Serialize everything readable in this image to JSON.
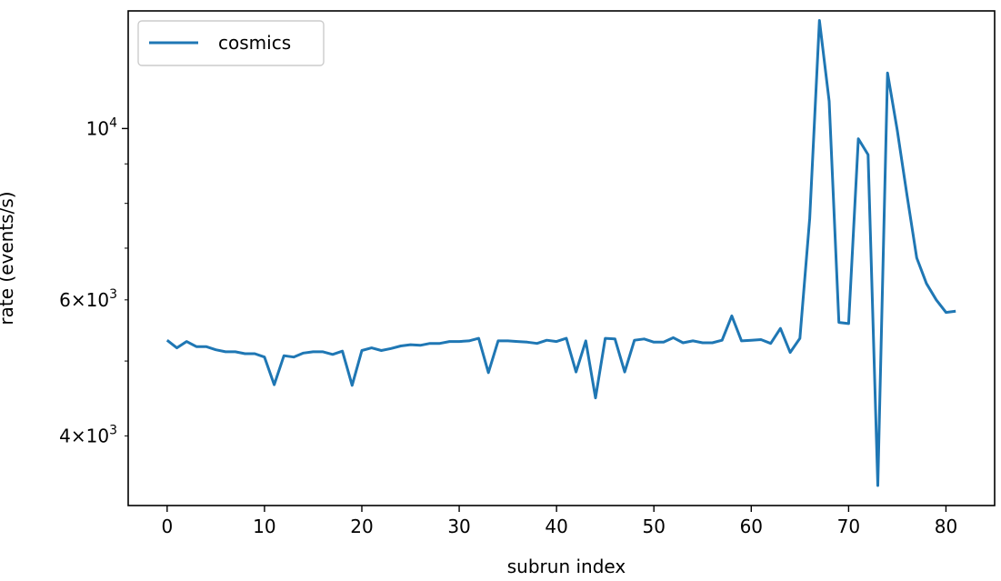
{
  "chart_data": {
    "type": "line",
    "xlabel": "subrun index",
    "ylabel": "rate (events/s)",
    "y_scale": "log",
    "xlim": [
      -4,
      85
    ],
    "ylim": [
      3250,
      14200
    ],
    "x_ticks": [
      {
        "value": 0,
        "label": "0"
      },
      {
        "value": 10,
        "label": "10"
      },
      {
        "value": 20,
        "label": "20"
      },
      {
        "value": 30,
        "label": "30"
      },
      {
        "value": 40,
        "label": "40"
      },
      {
        "value": 50,
        "label": "50"
      },
      {
        "value": 60,
        "label": "60"
      },
      {
        "value": 70,
        "label": "70"
      },
      {
        "value": 80,
        "label": "80"
      }
    ],
    "y_major_ticks": [
      {
        "value": 10000,
        "base": "10",
        "exp": "4"
      }
    ],
    "y_minor_ticks": [
      {
        "value": 4000,
        "coef": "4",
        "base": "10",
        "exp": "3"
      },
      {
        "value": 5000,
        "coef": "",
        "base": "",
        "exp": ""
      },
      {
        "value": 6000,
        "coef": "6",
        "base": "10",
        "exp": "3"
      },
      {
        "value": 7000,
        "coef": "",
        "base": "",
        "exp": ""
      },
      {
        "value": 8000,
        "coef": "",
        "base": "",
        "exp": ""
      },
      {
        "value": 9000,
        "coef": "",
        "base": "",
        "exp": ""
      }
    ],
    "grid": false,
    "legend": {
      "position": "top-left"
    },
    "series": [
      {
        "name": "cosmics",
        "color": "#1f77b4",
        "x": [
          0,
          1,
          2,
          3,
          4,
          5,
          6,
          7,
          8,
          9,
          10,
          11,
          12,
          13,
          14,
          15,
          16,
          17,
          18,
          19,
          20,
          21,
          22,
          23,
          24,
          25,
          26,
          27,
          28,
          29,
          30,
          31,
          32,
          33,
          34,
          35,
          36,
          37,
          38,
          39,
          40,
          41,
          42,
          43,
          44,
          45,
          46,
          47,
          48,
          49,
          50,
          51,
          52,
          53,
          54,
          55,
          56,
          57,
          58,
          59,
          60,
          61,
          62,
          63,
          64,
          65,
          66,
          67,
          68,
          69,
          70,
          71,
          72,
          73,
          74,
          75,
          76,
          77,
          78,
          79,
          80,
          81
        ],
        "y": [
          5320,
          5200,
          5300,
          5220,
          5220,
          5170,
          5140,
          5140,
          5110,
          5110,
          5060,
          4660,
          5080,
          5060,
          5120,
          5140,
          5140,
          5100,
          5150,
          4650,
          5160,
          5200,
          5160,
          5190,
          5230,
          5250,
          5240,
          5270,
          5270,
          5300,
          5300,
          5310,
          5350,
          4830,
          5310,
          5310,
          5300,
          5290,
          5270,
          5320,
          5300,
          5350,
          4840,
          5310,
          4480,
          5350,
          5340,
          4840,
          5320,
          5340,
          5290,
          5290,
          5360,
          5280,
          5310,
          5280,
          5280,
          5320,
          5720,
          5310,
          5320,
          5330,
          5270,
          5510,
          5130,
          5350,
          7650,
          13800,
          10850,
          5610,
          5590,
          9700,
          9250,
          3450,
          11800,
          9950,
          8200,
          6800,
          6300,
          6000,
          5780,
          5800
        ]
      }
    ]
  }
}
